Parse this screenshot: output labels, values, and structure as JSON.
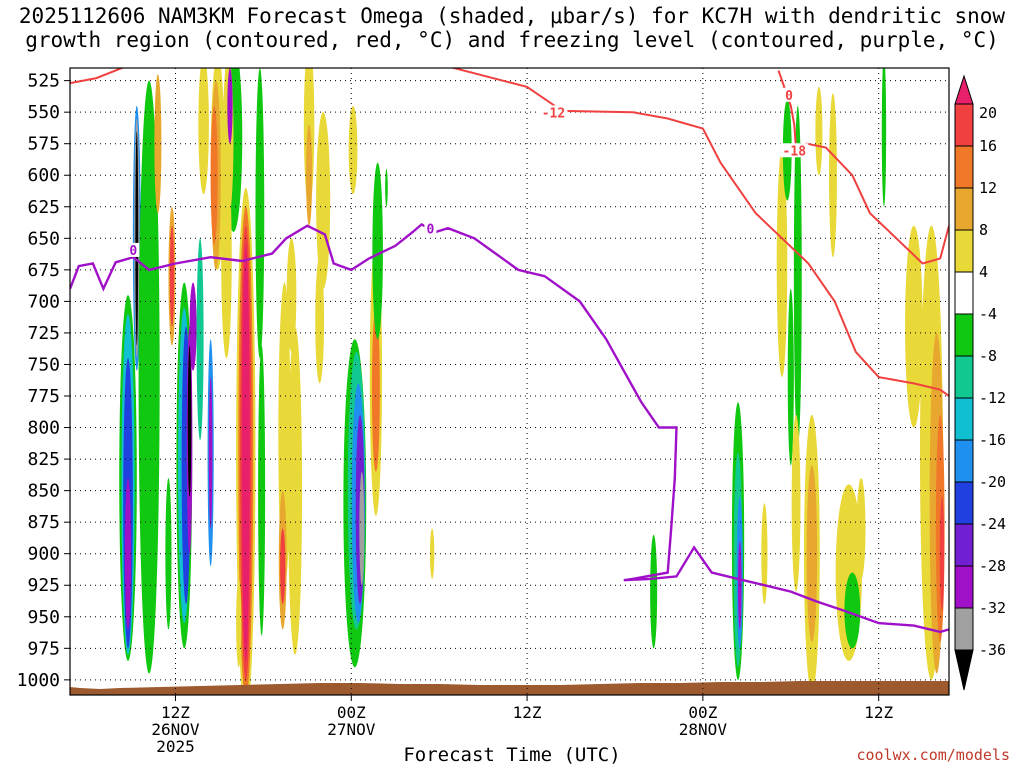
{
  "title": {
    "line1": "2025112606 NAM3KM Forecast Omega (shaded, μbar/s) for KC7H with dendritic snow",
    "line2": "growth region (contoured, red, °C) and freezing level (contoured, purple, °C)"
  },
  "credit": "coolwx.com/models",
  "chart_data": {
    "type": "heatmap",
    "title": "2025112606 NAM3KM Forecast Omega (shaded, μbar/s) for KC7H with dendritic snow growth region (contoured, red, °C) and freezing level (contoured, purple, °C)",
    "xlabel": "Forecast Time (UTC)",
    "ylabel": "",
    "x_range_hours": [
      6,
      56
    ],
    "y_levels": [
      525,
      550,
      575,
      600,
      625,
      650,
      675,
      700,
      725,
      750,
      775,
      800,
      825,
      850,
      875,
      900,
      925,
      950,
      975,
      1000
    ],
    "ylim": [
      1012,
      515
    ],
    "x_ticks": [
      {
        "hour": 12,
        "line1": "12Z",
        "line2": "26NOV",
        "line3": "2025"
      },
      {
        "hour": 22,
        "line1": "00Z",
        "line2": "27NOV",
        "line3": ""
      },
      {
        "hour": 32,
        "line1": "12Z",
        "line2": "",
        "line3": ""
      },
      {
        "hour": 42,
        "line1": "00Z",
        "line2": "28NOV",
        "line3": ""
      },
      {
        "hour": 52,
        "line1": "12Z",
        "line2": "",
        "line3": ""
      }
    ],
    "colorbar": {
      "labels": [
        "20",
        "16",
        "12",
        "8",
        "4",
        "-4",
        "-8",
        "-12",
        "-16",
        "-20",
        "-24",
        "-28",
        "-32",
        "-36"
      ],
      "bins": [
        {
          "low": 20,
          "high": 99,
          "color": "#e8206c"
        },
        {
          "low": 16,
          "high": 20,
          "color": "#f04040"
        },
        {
          "low": 12,
          "high": 16,
          "color": "#f07828"
        },
        {
          "low": 8,
          "high": 12,
          "color": "#e8a830"
        },
        {
          "low": 4,
          "high": 8,
          "color": "#e8d838"
        },
        {
          "low": -4,
          "high": 4,
          "color": "#ffffff"
        },
        {
          "low": -8,
          "high": -4,
          "color": "#10c810"
        },
        {
          "low": -12,
          "high": -8,
          "color": "#10c890"
        },
        {
          "low": -16,
          "high": -12,
          "color": "#10c0d0"
        },
        {
          "low": -20,
          "high": -16,
          "color": "#2090f0"
        },
        {
          "low": -24,
          "high": -20,
          "color": "#2040e0"
        },
        {
          "low": -28,
          "high": -24,
          "color": "#7020d0"
        },
        {
          "low": -32,
          "high": -28,
          "color": "#a010c8"
        },
        {
          "low": -36,
          "high": -32,
          "color": "#a0a0a0"
        },
        {
          "low": -99,
          "high": -36,
          "color": "#000000"
        }
      ]
    },
    "omega_cells": [
      {
        "x": 9.3,
        "p": 840,
        "wx": 1.0,
        "wp": 290,
        "value": -8
      },
      {
        "x": 9.3,
        "p": 845,
        "wx": 0.75,
        "wp": 270,
        "value": -14
      },
      {
        "x": 9.3,
        "p": 860,
        "wx": 0.55,
        "wp": 230,
        "value": -22
      },
      {
        "x": 9.3,
        "p": 900,
        "wx": 0.35,
        "wp": 120,
        "value": -30
      },
      {
        "x": 9.8,
        "p": 650,
        "wx": 0.45,
        "wp": 210,
        "value": -20
      },
      {
        "x": 9.8,
        "p": 650,
        "wx": 0.3,
        "wp": 190,
        "value": -34
      },
      {
        "x": 9.8,
        "p": 650,
        "wx": 0.16,
        "wp": 170,
        "value": -40
      },
      {
        "x": 10.5,
        "p": 760,
        "wx": 1.2,
        "wp": 470,
        "value": -6
      },
      {
        "x": 11.0,
        "p": 575,
        "wx": 0.4,
        "wp": 110,
        "value": 10
      },
      {
        "x": 11.8,
        "p": 680,
        "wx": 0.4,
        "wp": 110,
        "value": 10
      },
      {
        "x": 11.8,
        "p": 680,
        "wx": 0.25,
        "wp": 80,
        "value": 18
      },
      {
        "x": 11.6,
        "p": 900,
        "wx": 0.35,
        "wp": 120,
        "value": -6
      },
      {
        "x": 12.5,
        "p": 830,
        "wx": 0.9,
        "wp": 290,
        "value": -8
      },
      {
        "x": 12.5,
        "p": 830,
        "wx": 0.7,
        "wp": 250,
        "value": -14
      },
      {
        "x": 12.6,
        "p": 830,
        "wx": 0.5,
        "wp": 220,
        "value": -22
      },
      {
        "x": 12.8,
        "p": 810,
        "wx": 0.32,
        "wp": 180,
        "value": -30
      },
      {
        "x": 12.8,
        "p": 795,
        "wx": 0.2,
        "wp": 120,
        "value": -40
      },
      {
        "x": 13.0,
        "p": 720,
        "wx": 0.4,
        "wp": 70,
        "value": -30
      },
      {
        "x": 13.4,
        "p": 730,
        "wx": 0.4,
        "wp": 160,
        "value": -10
      },
      {
        "x": 14.0,
        "p": 820,
        "wx": 0.35,
        "wp": 180,
        "value": -20
      },
      {
        "x": 14.0,
        "p": 820,
        "wx": 0.2,
        "wp": 120,
        "value": -32
      },
      {
        "x": 13.6,
        "p": 560,
        "wx": 0.6,
        "wp": 110,
        "value": 6
      },
      {
        "x": 14.4,
        "p": 590,
        "wx": 0.8,
        "wp": 170,
        "value": 6
      },
      {
        "x": 14.3,
        "p": 600,
        "wx": 0.55,
        "wp": 150,
        "value": 10
      },
      {
        "x": 14.2,
        "p": 600,
        "wx": 0.4,
        "wp": 110,
        "value": 14
      },
      {
        "x": 15.3,
        "p": 570,
        "wx": 1.0,
        "wp": 150,
        "value": -8
      },
      {
        "x": 15.0,
        "p": 570,
        "wx": 0.6,
        "wp": 130,
        "value": 6
      },
      {
        "x": 15.1,
        "p": 545,
        "wx": 0.3,
        "wp": 60,
        "value": -32
      },
      {
        "x": 14.9,
        "p": 665,
        "wx": 0.6,
        "wp": 160,
        "value": 6
      },
      {
        "x": 16.0,
        "p": 820,
        "wx": 1.1,
        "wp": 420,
        "value": 6
      },
      {
        "x": 16.0,
        "p": 820,
        "wx": 0.85,
        "wp": 390,
        "value": 12
      },
      {
        "x": 16.0,
        "p": 820,
        "wx": 0.65,
        "wp": 360,
        "value": 17
      },
      {
        "x": 16.0,
        "p": 820,
        "wx": 0.45,
        "wp": 330,
        "value": 24
      },
      {
        "x": 15.6,
        "p": 955,
        "wx": 0.3,
        "wp": 70,
        "value": 6
      },
      {
        "x": 16.8,
        "p": 630,
        "wx": 0.5,
        "wp": 230,
        "value": -6
      },
      {
        "x": 16.9,
        "p": 850,
        "wx": 0.4,
        "wp": 230,
        "value": -6
      },
      {
        "x": 18.2,
        "p": 805,
        "wx": 0.7,
        "wp": 240,
        "value": 6
      },
      {
        "x": 18.1,
        "p": 905,
        "wx": 0.45,
        "wp": 110,
        "value": 10
      },
      {
        "x": 18.1,
        "p": 910,
        "wx": 0.3,
        "wp": 60,
        "value": 16
      },
      {
        "x": 18.6,
        "p": 695,
        "wx": 0.55,
        "wp": 90,
        "value": 6
      },
      {
        "x": 18.8,
        "p": 850,
        "wx": 0.8,
        "wp": 260,
        "value": 6
      },
      {
        "x": 19.6,
        "p": 560,
        "wx": 0.6,
        "wp": 130,
        "value": 6
      },
      {
        "x": 19.6,
        "p": 600,
        "wx": 0.35,
        "wp": 80,
        "value": 10
      },
      {
        "x": 20.4,
        "p": 620,
        "wx": 0.8,
        "wp": 140,
        "value": 6
      },
      {
        "x": 20.2,
        "p": 715,
        "wx": 0.5,
        "wp": 100,
        "value": 6
      },
      {
        "x": 22.1,
        "p": 580,
        "wx": 0.5,
        "wp": 70,
        "value": 6
      },
      {
        "x": 22.2,
        "p": 860,
        "wx": 1.3,
        "wp": 260,
        "value": -6
      },
      {
        "x": 22.3,
        "p": 850,
        "wx": 1.0,
        "wp": 220,
        "value": -12
      },
      {
        "x": 22.4,
        "p": 860,
        "wx": 0.75,
        "wp": 190,
        "value": -18
      },
      {
        "x": 22.5,
        "p": 865,
        "wx": 0.5,
        "wp": 150,
        "value": -26
      },
      {
        "x": 22.6,
        "p": 880,
        "wx": 0.28,
        "wp": 90,
        "value": -34
      },
      {
        "x": 23.4,
        "p": 760,
        "wx": 0.7,
        "wp": 220,
        "value": 6
      },
      {
        "x": 23.4,
        "p": 770,
        "wx": 0.45,
        "wp": 130,
        "value": 12
      },
      {
        "x": 23.5,
        "p": 660,
        "wx": 0.6,
        "wp": 140,
        "value": -6
      },
      {
        "x": 24.0,
        "p": 610,
        "wx": 0.15,
        "wp": 30,
        "value": -6
      },
      {
        "x": 26.6,
        "p": 900,
        "wx": 0.25,
        "wp": 40,
        "value": 6
      },
      {
        "x": 39.2,
        "p": 930,
        "wx": 0.4,
        "wp": 90,
        "value": -6
      },
      {
        "x": 44.0,
        "p": 890,
        "wx": 0.7,
        "wp": 220,
        "value": -6
      },
      {
        "x": 44.0,
        "p": 905,
        "wx": 0.5,
        "wp": 170,
        "value": -12
      },
      {
        "x": 44.1,
        "p": 915,
        "wx": 0.35,
        "wp": 120,
        "value": -20
      },
      {
        "x": 44.1,
        "p": 925,
        "wx": 0.2,
        "wp": 70,
        "value": -30
      },
      {
        "x": 45.5,
        "p": 900,
        "wx": 0.35,
        "wp": 80,
        "value": 6
      },
      {
        "x": 46.5,
        "p": 670,
        "wx": 0.6,
        "wp": 180,
        "value": 6
      },
      {
        "x": 46.8,
        "p": 580,
        "wx": 0.5,
        "wp": 80,
        "value": -6
      },
      {
        "x": 47.4,
        "p": 680,
        "wx": 0.45,
        "wp": 270,
        "value": -6
      },
      {
        "x": 47.0,
        "p": 760,
        "wx": 0.35,
        "wp": 140,
        "value": -6
      },
      {
        "x": 47.3,
        "p": 860,
        "wx": 0.5,
        "wp": 140,
        "value": 6
      },
      {
        "x": 48.2,
        "p": 900,
        "wx": 0.9,
        "wp": 220,
        "value": 6
      },
      {
        "x": 48.2,
        "p": 900,
        "wx": 0.6,
        "wp": 140,
        "value": 10
      },
      {
        "x": 48.6,
        "p": 565,
        "wx": 0.4,
        "wp": 70,
        "value": 6
      },
      {
        "x": 49.4,
        "p": 600,
        "wx": 0.45,
        "wp": 130,
        "value": 6
      },
      {
        "x": 50.3,
        "p": 915,
        "wx": 1.5,
        "wp": 140,
        "value": 6
      },
      {
        "x": 50.5,
        "p": 945,
        "wx": 0.9,
        "wp": 60,
        "value": -6
      },
      {
        "x": 51.0,
        "p": 880,
        "wx": 0.5,
        "wp": 80,
        "value": 6
      },
      {
        "x": 52.3,
        "p": 565,
        "wx": 0.25,
        "wp": 120,
        "value": -6
      },
      {
        "x": 54.0,
        "p": 720,
        "wx": 1.0,
        "wp": 160,
        "value": 6
      },
      {
        "x": 55.0,
        "p": 820,
        "wx": 1.3,
        "wp": 360,
        "value": 6
      },
      {
        "x": 55.3,
        "p": 860,
        "wx": 0.8,
        "wp": 270,
        "value": 10
      },
      {
        "x": 55.5,
        "p": 880,
        "wx": 0.5,
        "wp": 180,
        "value": 14
      },
      {
        "x": 55.6,
        "p": 900,
        "wx": 0.25,
        "wp": 90,
        "value": 18
      }
    ],
    "dgz_contours": [
      {
        "label": "-12",
        "label_at": [
          33.5,
          551
        ],
        "points": [
          [
            6,
            527
          ],
          [
            7.5,
            523
          ],
          [
            9.5,
            512
          ],
          [
            18,
            512
          ],
          [
            27,
            512
          ],
          [
            32,
            530
          ],
          [
            34,
            549
          ],
          [
            38,
            550
          ],
          [
            40,
            555
          ],
          [
            42,
            563
          ],
          [
            43,
            590
          ],
          [
            44,
            610
          ],
          [
            45,
            630
          ],
          [
            46.5,
            650
          ],
          [
            48,
            670
          ],
          [
            49.5,
            700
          ],
          [
            50.7,
            740
          ],
          [
            52,
            760
          ],
          [
            54,
            765
          ],
          [
            55.5,
            770
          ],
          [
            56,
            775
          ]
        ]
      },
      {
        "label": "-18",
        "label_at": [
          47.2,
          581
        ],
        "points": [
          [
            46.3,
            517
          ],
          [
            47,
            545
          ],
          [
            47.2,
            560
          ],
          [
            47.3,
            580
          ],
          [
            47.9,
            575
          ],
          [
            49,
            578
          ],
          [
            50.5,
            600
          ],
          [
            51.5,
            630
          ],
          [
            53,
            650
          ],
          [
            54.5,
            670
          ],
          [
            55.5,
            666
          ],
          [
            56,
            640
          ]
        ]
      },
      {
        "label": "0",
        "label_at": [
          46.9,
          537
        ],
        "points": [
          [
            46.6,
            530
          ],
          [
            46.8,
            540
          ],
          [
            47.0,
            535
          ]
        ]
      }
    ],
    "freezing_level": {
      "label": "0",
      "label_positions": [
        [
          9.6,
          660
        ],
        [
          26.5,
          643
        ]
      ],
      "points": [
        [
          6,
          690
        ],
        [
          6.5,
          672
        ],
        [
          7.3,
          670
        ],
        [
          7.9,
          690
        ],
        [
          8.6,
          669
        ],
        [
          9.6,
          665
        ],
        [
          10.5,
          675
        ],
        [
          12,
          670
        ],
        [
          14,
          665
        ],
        [
          15.8,
          668
        ],
        [
          17.5,
          662
        ],
        [
          18.3,
          650
        ],
        [
          19.5,
          640
        ],
        [
          20.5,
          647
        ],
        [
          21.0,
          670
        ],
        [
          22.0,
          675
        ],
        [
          23.0,
          666
        ],
        [
          24.5,
          656
        ],
        [
          25.5,
          645
        ],
        [
          26.0,
          639
        ],
        [
          26.8,
          645
        ],
        [
          27.5,
          642
        ],
        [
          29.0,
          650
        ],
        [
          30.5,
          665
        ],
        [
          31.5,
          675
        ],
        [
          33,
          680
        ],
        [
          35,
          700
        ],
        [
          36.5,
          730
        ],
        [
          37.5,
          755
        ],
        [
          38.5,
          780
        ],
        [
          39.5,
          800
        ],
        [
          40.5,
          800
        ],
        [
          40.4,
          840
        ],
        [
          40.2,
          880
        ],
        [
          40.0,
          915
        ],
        [
          38.0,
          920
        ],
        [
          37.5,
          921
        ],
        [
          39.0,
          920
        ],
        [
          40.5,
          918
        ],
        [
          41.5,
          895
        ],
        [
          42.5,
          915
        ],
        [
          44.0,
          920
        ],
        [
          45.5,
          925
        ],
        [
          47.0,
          930
        ],
        [
          48.5,
          938
        ],
        [
          50,
          945
        ],
        [
          52,
          955
        ],
        [
          54,
          957
        ],
        [
          55.5,
          962
        ],
        [
          56,
          960
        ]
      ]
    }
  }
}
